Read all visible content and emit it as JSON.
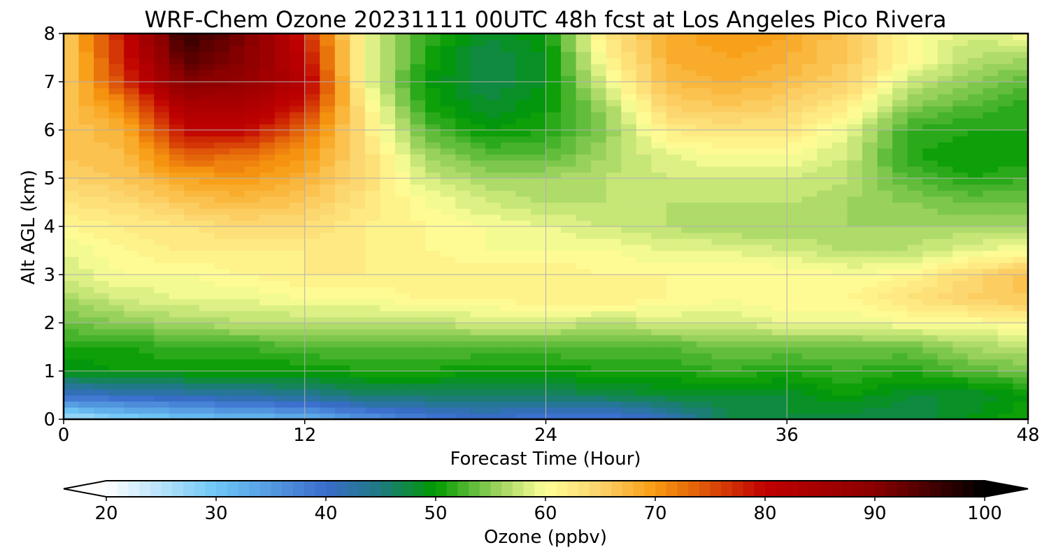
{
  "chart_data": {
    "type": "heatmap",
    "title": "WRF-Chem Ozone  20231111 00UTC 48h fcst at Los Angeles Pico Rivera",
    "xlabel": "Forecast Time (Hour)",
    "ylabel": "Alt AGL (km)",
    "xlim": [
      0,
      48
    ],
    "ylim": [
      0,
      8
    ],
    "xticks": [
      "0",
      "12",
      "24",
      "36",
      "48"
    ],
    "yticks": [
      "0",
      "1",
      "2",
      "3",
      "4",
      "5",
      "6",
      "7",
      "8"
    ],
    "grid": true,
    "x": [
      0,
      3,
      6,
      9,
      12,
      15,
      18,
      21,
      24,
      27,
      30,
      33,
      36,
      39,
      42,
      45,
      48
    ],
    "y": [
      0,
      0.5,
      1,
      1.5,
      2,
      2.5,
      3,
      3.5,
      4,
      4.5,
      5,
      5.5,
      6,
      6.5,
      7,
      7.5,
      8
    ],
    "z": [
      [
        25,
        28,
        30,
        31,
        32,
        35,
        38,
        40,
        38,
        38,
        41,
        47,
        48,
        47,
        47,
        49,
        51
      ],
      [
        40,
        41,
        42,
        43,
        44,
        46,
        46,
        46,
        46,
        47,
        48,
        48,
        48,
        50,
        48,
        48,
        50
      ],
      [
        49,
        50,
        50,
        50,
        50,
        51,
        51,
        50,
        50,
        51,
        51,
        52,
        51,
        52,
        51,
        53,
        54
      ],
      [
        51,
        51,
        52,
        52,
        53,
        53,
        53,
        53,
        53,
        53,
        53,
        54,
        54,
        54,
        54,
        56,
        57
      ],
      [
        54,
        55,
        56,
        57,
        57,
        57,
        57,
        58,
        58,
        57,
        58,
        58,
        59,
        59,
        60,
        60,
        61
      ],
      [
        56,
        58,
        59,
        59,
        60,
        60,
        61,
        61,
        62,
        62,
        61,
        60,
        61,
        61,
        63,
        65,
        66
      ],
      [
        58,
        60,
        60,
        61,
        62,
        62,
        62,
        62,
        62,
        61,
        61,
        61,
        61,
        60,
        61,
        64,
        67
      ],
      [
        59,
        61,
        62,
        62,
        62,
        62,
        61,
        60,
        60,
        60,
        59,
        59,
        58,
        57,
        57,
        59,
        60
      ],
      [
        61,
        62,
        63,
        64,
        64,
        62,
        61,
        60,
        59,
        58,
        57,
        56,
        56,
        56,
        56,
        56,
        56
      ],
      [
        63,
        64,
        66,
        67,
        66,
        63,
        60,
        58,
        57,
        57,
        57,
        57,
        57,
        56,
        55,
        54,
        54
      ],
      [
        65,
        66,
        69,
        70,
        68,
        64,
        58,
        56,
        56,
        57,
        58,
        58,
        58,
        57,
        53,
        51,
        52
      ],
      [
        66,
        67,
        74,
        73,
        70,
        64,
        56,
        53,
        53,
        56,
        59,
        60,
        60,
        58,
        51,
        50,
        50
      ],
      [
        66,
        68,
        80,
        80,
        73,
        63,
        53,
        50,
        51,
        55,
        62,
        63,
        63,
        59,
        52,
        51,
        51
      ],
      [
        66,
        71,
        84,
        84,
        78,
        62,
        51,
        48,
        50,
        56,
        65,
        66,
        65,
        62,
        55,
        53,
        51
      ],
      [
        65,
        76,
        90,
        88,
        82,
        60,
        50,
        47,
        49,
        59,
        67,
        68,
        67,
        65,
        58,
        55,
        53
      ],
      [
        65,
        78,
        94,
        90,
        80,
        60,
        51,
        47,
        49,
        61,
        68,
        69,
        68,
        66,
        61,
        57,
        56
      ],
      [
        65,
        79,
        97,
        91,
        78,
        60,
        52,
        48,
        50,
        63,
        68,
        70,
        69,
        66,
        61,
        58,
        60
      ]
    ],
    "colorbar": {
      "label": "Ozone  (ppbv)",
      "min": 20,
      "max": 100,
      "extend": "both",
      "ticks": [
        "20",
        "30",
        "40",
        "50",
        "60",
        "70",
        "80",
        "90",
        "100"
      ],
      "stops": [
        {
          "v": 20,
          "c": "#ffffff"
        },
        {
          "v": 30,
          "c": "#6ec6f5"
        },
        {
          "v": 40,
          "c": "#3a6ccc"
        },
        {
          "v": 45,
          "c": "#1e7a80"
        },
        {
          "v": 50,
          "c": "#009a00"
        },
        {
          "v": 55,
          "c": "#8ccc55"
        },
        {
          "v": 60,
          "c": "#ffff99"
        },
        {
          "v": 65,
          "c": "#fcd36a"
        },
        {
          "v": 70,
          "c": "#f89a10"
        },
        {
          "v": 80,
          "c": "#c00000"
        },
        {
          "v": 90,
          "c": "#8a0000"
        },
        {
          "v": 100,
          "c": "#000000"
        }
      ]
    }
  }
}
